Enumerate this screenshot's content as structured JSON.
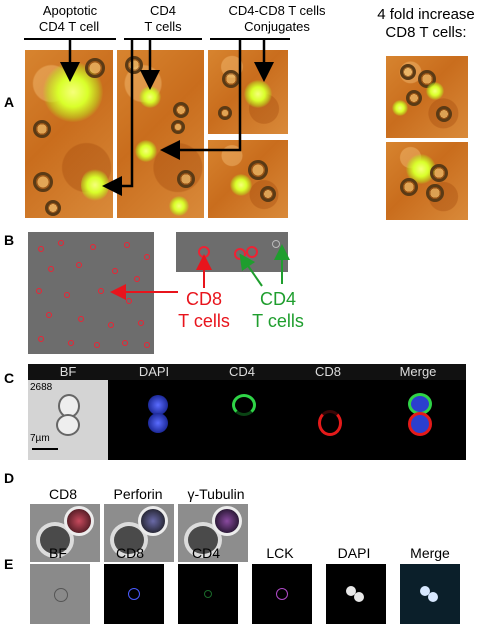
{
  "panel_a": {
    "letter": "A",
    "labels": {
      "apoptotic_line1": "Apoptotic",
      "apoptotic_line2": "CD4 T cell",
      "cd4_line1": "CD4",
      "cd4_line2": "T cells",
      "conj_line1": "CD4-CD8 T cells",
      "conj_line2": "Conjugates",
      "increase_line1": "4 fold increase",
      "increase_line2": "CD8 T cells:"
    }
  },
  "panel_b": {
    "letter": "B",
    "cd8_line1": "CD8",
    "cd8_line2": "T cells",
    "cd4_line1": "CD4",
    "cd4_line2": "T cells",
    "cd8_color": "#e8141c",
    "cd4_color": "#1f9e2e"
  },
  "panel_c": {
    "letter": "C",
    "channels": [
      "BF",
      "DAPI",
      "CD4",
      "CD8",
      "Merge"
    ],
    "cell_id": "2688",
    "scale": "7µm"
  },
  "panel_d": {
    "letter": "D",
    "channels": [
      "CD8",
      "Perforin",
      "γ-Tubulin"
    ]
  },
  "panel_e": {
    "letter": "E",
    "channels": [
      "BF",
      "CD8",
      "CD4",
      "LCK",
      "DAPI",
      "Merge"
    ]
  }
}
